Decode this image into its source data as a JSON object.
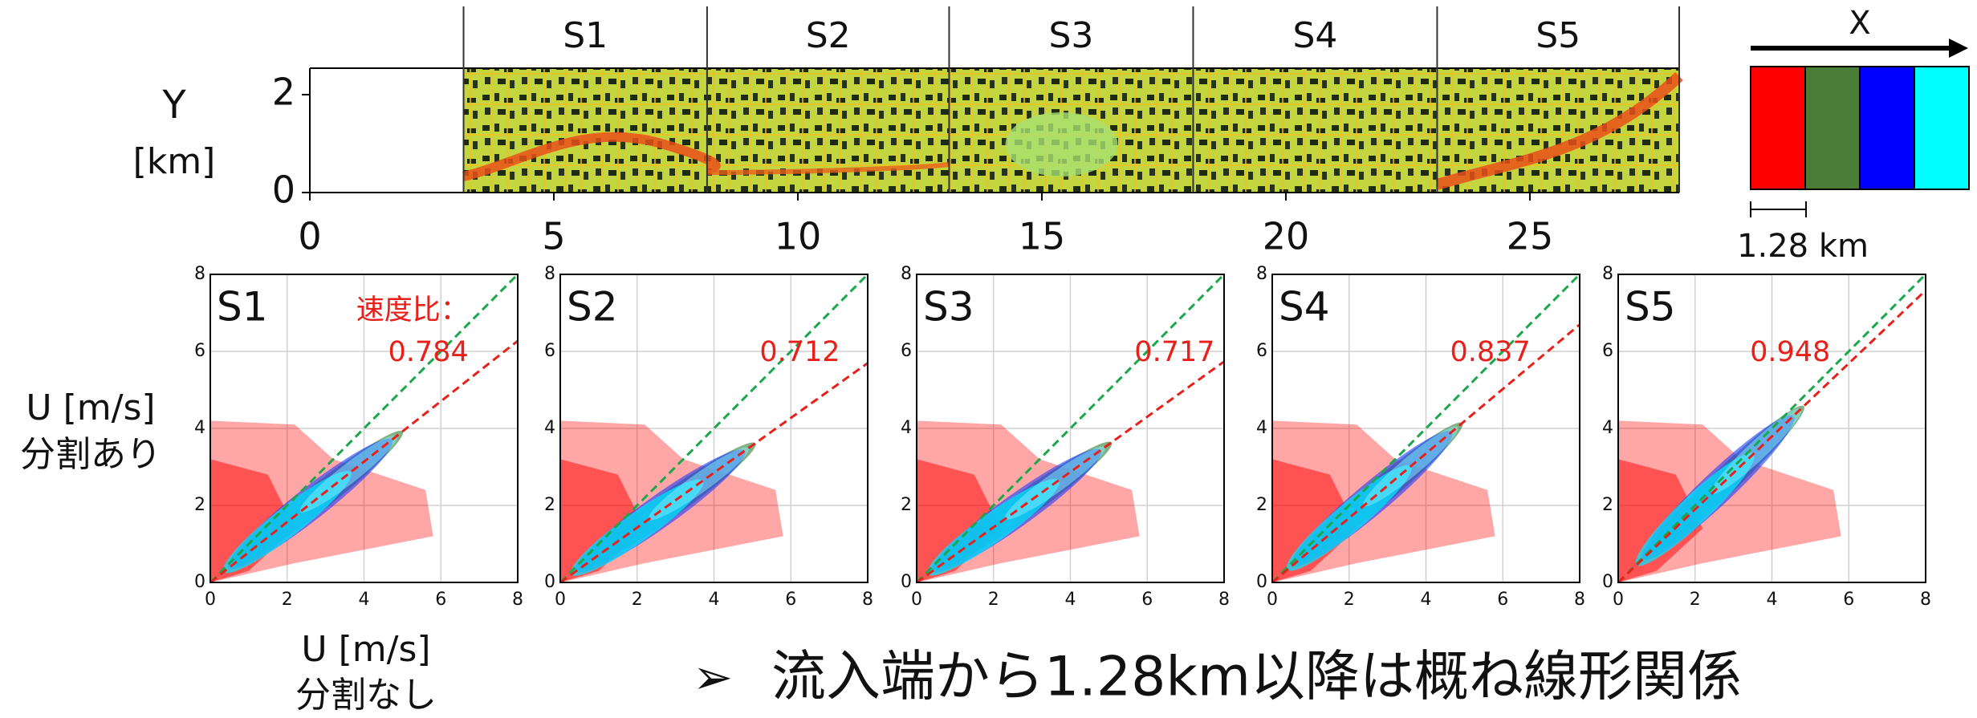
{
  "chart_data": [
    {
      "type": "strip",
      "y_label": "Y",
      "y_unit": "[km]",
      "xlim": [
        0,
        28.06
      ],
      "xticks": [
        0,
        5,
        10,
        15,
        20,
        25
      ],
      "ylim": [
        0,
        2.54
      ],
      "yticks": [
        0,
        2
      ],
      "sections": [
        "S1",
        "S2",
        "S3",
        "S4",
        "S5"
      ],
      "section_edges": [
        3.15,
        8.14,
        13.1,
        18.1,
        23.1,
        28.06
      ]
    },
    {
      "type": "scatter",
      "title": "S1",
      "annotation_label": "速度比：",
      "ratio": 0.784,
      "y_label": [
        "U [m/s]",
        "分割あり"
      ],
      "x_label": [
        "U [m/s]",
        "分割なし"
      ],
      "xlim": [
        0,
        8
      ],
      "ylim": [
        0,
        8
      ],
      "xticks": [
        0,
        2,
        4,
        6,
        8
      ],
      "yticks": [
        0,
        2,
        4,
        6,
        8
      ],
      "grid": true
    },
    {
      "type": "scatter",
      "title": "S2",
      "ratio": 0.712,
      "xlim": [
        0,
        8
      ],
      "ylim": [
        0,
        8
      ],
      "xticks": [
        0,
        2,
        4,
        6,
        8
      ],
      "yticks": [
        0,
        2,
        4,
        6,
        8
      ],
      "grid": true
    },
    {
      "type": "scatter",
      "title": "S3",
      "ratio": 0.717,
      "xlim": [
        0,
        8
      ],
      "ylim": [
        0,
        8
      ],
      "xticks": [
        0,
        2,
        4,
        6,
        8
      ],
      "yticks": [
        0,
        2,
        4,
        6,
        8
      ],
      "grid": true
    },
    {
      "type": "scatter",
      "title": "S4",
      "ratio": 0.837,
      "xlim": [
        0,
        8
      ],
      "ylim": [
        0,
        8
      ],
      "xticks": [
        0,
        2,
        4,
        6,
        8
      ],
      "yticks": [
        0,
        2,
        4,
        6,
        8
      ],
      "grid": true
    },
    {
      "type": "scatter",
      "title": "S5",
      "ratio": 0.948,
      "xlim": [
        0,
        8
      ],
      "ylim": [
        0,
        8
      ],
      "xticks": [
        0,
        2,
        4,
        6,
        8
      ],
      "yticks": [
        0,
        2,
        4,
        6,
        8
      ],
      "grid": true
    }
  ],
  "legend": {
    "axis_label": "X",
    "colors": [
      "#ff0000",
      "#4a7d35",
      "#0000ff",
      "#00ffff"
    ],
    "scale_label": "1.28 km"
  },
  "note": {
    "bullet": "➢",
    "text": "流入端から1.28km以降は概ね線形関係"
  }
}
